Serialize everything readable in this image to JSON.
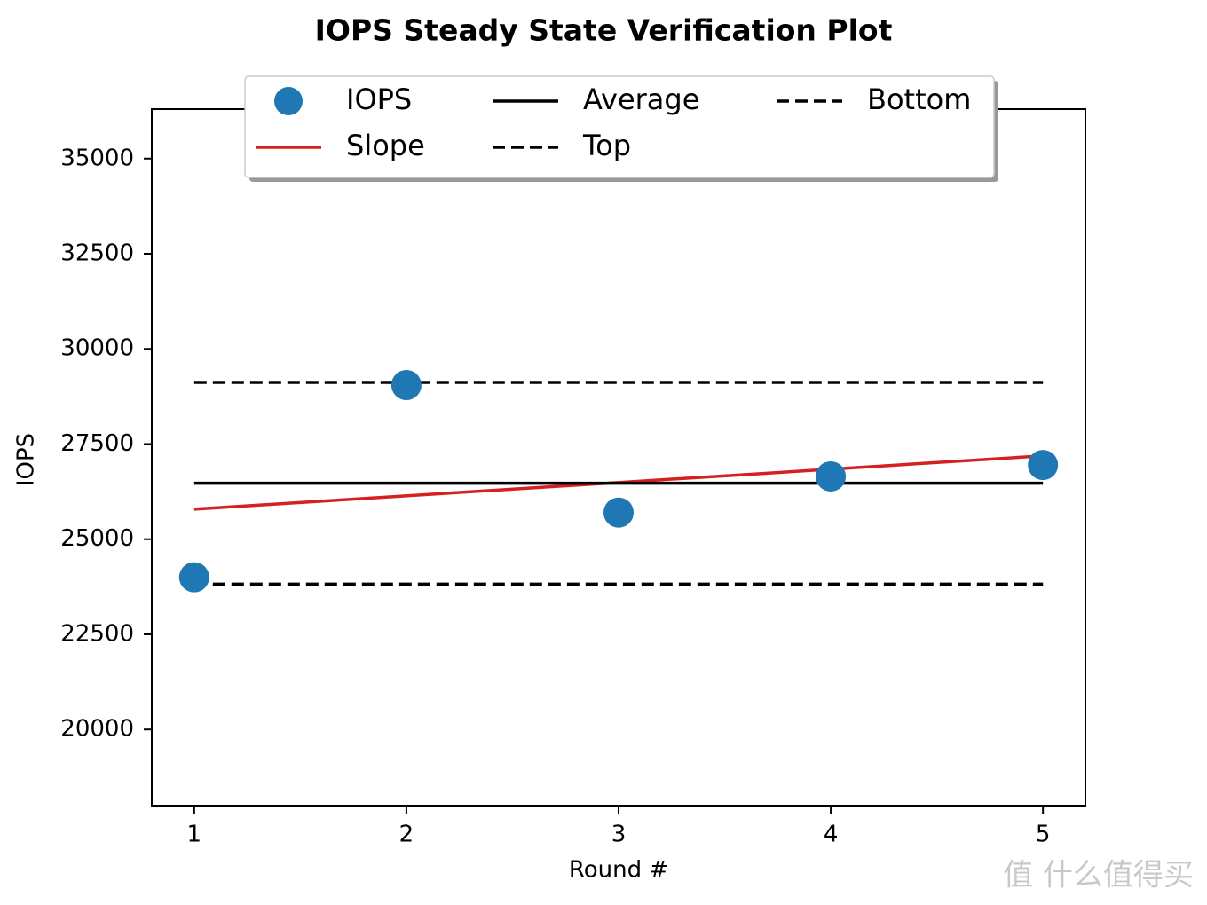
{
  "chart_data": {
    "type": "scatter_lines",
    "title": "IOPS Steady State Verification Plot",
    "x_label": "Round #",
    "y_label": "IOPS",
    "xlim": [
      0.8,
      5.2
    ],
    "xticks": [
      1,
      2,
      3,
      4,
      5
    ],
    "ylim": [
      18000,
      36300
    ],
    "yticks": [
      20000,
      22500,
      25000,
      27500,
      30000,
      32500,
      35000
    ],
    "legend": "upper center",
    "legend_columns": 3,
    "series": [
      {
        "name": "IOPS",
        "style": "scatter",
        "color": "#1f77b4",
        "x": [
          1,
          2,
          3,
          4,
          5
        ],
        "values": [
          24000,
          29050,
          25700,
          26650,
          26950
        ]
      },
      {
        "name": "Slope",
        "style": "solid",
        "color": "#d62020",
        "x": [
          1,
          5
        ],
        "values": [
          25790,
          27190
        ]
      },
      {
        "name": "Average",
        "style": "solid",
        "color": "#000000",
        "x": [
          1,
          5
        ],
        "values": [
          26470,
          26470
        ]
      },
      {
        "name": "Top",
        "style": "dashed",
        "color": "#000000",
        "x": [
          1,
          5
        ],
        "values": [
          29120,
          29120
        ]
      },
      {
        "name": "Bottom",
        "style": "dashed",
        "color": "#000000",
        "x": [
          1,
          5
        ],
        "values": [
          23820,
          23820
        ]
      }
    ],
    "watermark": "值 什么值得买"
  }
}
